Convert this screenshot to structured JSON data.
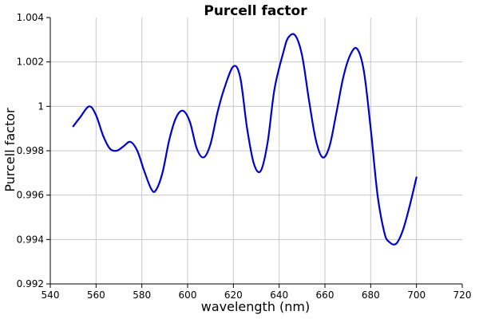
{
  "chart_data": {
    "type": "line",
    "title": "Purcell factor",
    "xlabel": "wavelength (nm)",
    "ylabel": "Purcell factor",
    "xlim": [
      540,
      720
    ],
    "ylim": [
      0.992,
      1.004
    ],
    "xticks": [
      540,
      560,
      580,
      600,
      620,
      640,
      660,
      680,
      700,
      720
    ],
    "xtick_labels": [
      "540",
      "560",
      "580",
      "600",
      "620",
      "640",
      "660",
      "680",
      "700",
      "720"
    ],
    "yticks": [
      0.992,
      0.994,
      0.996,
      0.998,
      1.0,
      1.002,
      1.004
    ],
    "ytick_labels": [
      "0.992",
      "0.994",
      "0.996",
      "0.998",
      "1",
      "1.002",
      "1.004"
    ],
    "grid": true,
    "line_color": "#0000cc",
    "series": [
      {
        "x": [
          550,
          553,
          557,
          560,
          563,
          566,
          569,
          572,
          575,
          578,
          581,
          584,
          586,
          589,
          592,
          595,
          598,
          601,
          604,
          607,
          610,
          613,
          616,
          620,
          623,
          626,
          629,
          632,
          635,
          638,
          642,
          644,
          647,
          650,
          653,
          656,
          659,
          662,
          665,
          668,
          671,
          674,
          677,
          680,
          683,
          686,
          688,
          691,
          694,
          697,
          700
        ],
        "y": [
          0.9991,
          0.9995,
          1.0,
          0.9996,
          0.9987,
          0.9981,
          0.998,
          0.9982,
          0.9984,
          0.998,
          0.9971,
          0.9963,
          0.9962,
          0.997,
          0.9985,
          0.9995,
          0.9998,
          0.9993,
          0.9981,
          0.9977,
          0.9983,
          0.9997,
          1.0008,
          1.0018,
          1.0013,
          0.999,
          0.9974,
          0.9971,
          0.9984,
          1.0008,
          1.0025,
          1.0031,
          1.0032,
          1.0023,
          1.0003,
          0.9985,
          0.9977,
          0.9982,
          0.9997,
          1.0013,
          1.0023,
          1.0026,
          1.0016,
          0.999,
          0.996,
          0.9943,
          0.9939,
          0.9938,
          0.9944,
          0.9955,
          0.9968
        ]
      }
    ]
  }
}
